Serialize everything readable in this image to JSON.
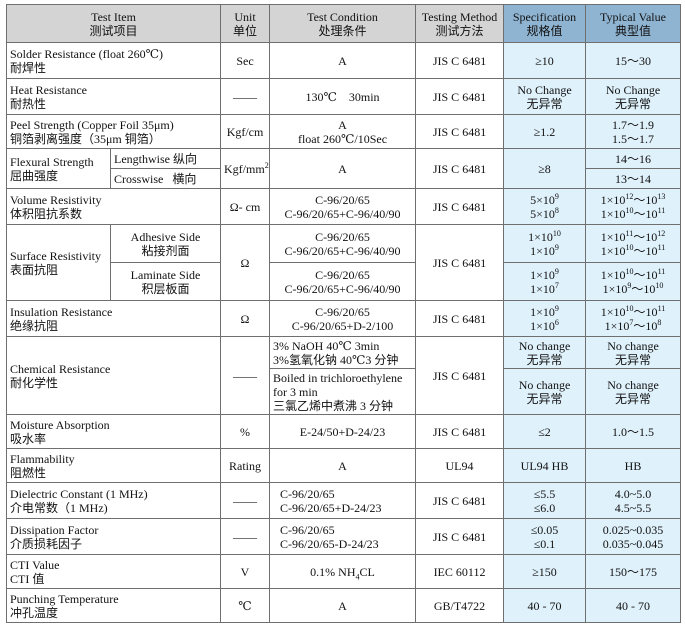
{
  "headers": {
    "item_en": "Test Item",
    "item_cn": "测试项目",
    "unit_en": "Unit",
    "unit_cn": "单位",
    "cond_en": "Test Condition",
    "cond_cn": "处理条件",
    "method_en": "Testing Method",
    "method_cn": "测试方法",
    "spec_en": "Specification",
    "spec_cn": "规格值",
    "typ_en": "Typical Value",
    "typ_cn": "典型值"
  },
  "rows": {
    "solder": {
      "en": "Solder Resistance (float 260℃)",
      "cn": "耐焊性",
      "unit": "Sec",
      "cond": "A",
      "method": "JIS C 6481",
      "spec": "≥10",
      "typ": "15～30"
    },
    "heat": {
      "en": "Heat Resistance",
      "cn": "耐热性",
      "unit": "——",
      "cond": "130℃    30min",
      "method": "JIS C 6481",
      "spec1": "No Change",
      "spec2": "无异常",
      "typ1": "No Change",
      "typ2": "无异常"
    },
    "peel": {
      "en": "Peel Strength (Copper Foil 35μm)",
      "cn": "铜箔剥离强度（35μm 铜箔）",
      "unit": "Kgf/cm",
      "cond1": "A",
      "cond2": "float 260℃/10Sec",
      "method": "JIS C 6481",
      "spec": "≥1.2",
      "typ1": "1.7～1.9",
      "typ2": "1.5～1.7"
    },
    "flex": {
      "en": "Flexural Strength",
      "cn": "屈曲强度",
      "sub1": "Lengthwise 纵向",
      "sub2": "Crosswise   横向",
      "unit": "Kgf/mm",
      "unit_sup": "2",
      "cond": "A",
      "method": "JIS C 6481",
      "spec": "≥8",
      "typ1": "14～16",
      "typ2": "13～14"
    },
    "volume": {
      "en": "Volume Resistivity",
      "cn": "体积阻抗系数",
      "unit": "Ω- cm",
      "cond1": "C-96/20/65",
      "cond2": "C-96/20/65+C-96/40/90",
      "method": "JIS C 6481",
      "spec1_base": "5×10",
      "spec1_exp": "9",
      "spec2_base": "5×10",
      "spec2_exp": "8",
      "typ1_a": "1×10",
      "typ1_ae": "12",
      "typ1_sep": "～10",
      "typ1_be": "13",
      "typ2_a": "1×10",
      "typ2_ae": "10",
      "typ2_sep": "～10",
      "typ2_be": "11"
    },
    "surface": {
      "en": "Surface Resistivity",
      "cn": "表面抗阻",
      "unit": "Ω",
      "adh_en": "Adhesive Side",
      "adh_cn": "粘接剂面",
      "lam_en": "Laminate Side",
      "lam_cn": "积层板面",
      "cond1": "C-96/20/65",
      "cond2": "C-96/20/65+C-96/40/90",
      "cond3": "C-96/20/65",
      "cond4": "C-96/20/65+C-96/40/90",
      "method": "JIS C 6481",
      "spec1_base": "1×10",
      "spec1_exp": "10",
      "spec2_base": "1×10",
      "spec2_exp": "9",
      "spec3_base": "1×10",
      "spec3_exp": "9",
      "spec4_base": "1×10",
      "spec4_exp": "7",
      "typ1_a": "1×10",
      "typ1_ae": "11",
      "typ1_sep": "～10",
      "typ1_be": "12",
      "typ2_a": "1×10",
      "typ2_ae": "10",
      "typ2_sep": "～10",
      "typ2_be": "11",
      "typ3_a": "1×10",
      "typ3_ae": "10",
      "typ3_sep": "～10",
      "typ3_be": "11",
      "typ4_a": "1×10",
      "typ4_ae": "9",
      "typ4_sep": "～10",
      "typ4_be": "10"
    },
    "insul": {
      "en": "Insulation Resistance",
      "cn": "绝缘抗阻",
      "unit": "Ω",
      "cond1": "C-96/20/65",
      "cond2": "C-96/20/65+D-2/100",
      "method": "JIS C 6481",
      "spec1_base": "1×10",
      "spec1_exp": "9",
      "spec2_base": "1×10",
      "spec2_exp": "6",
      "typ1_a": "1×10",
      "typ1_ae": "10",
      "typ1_sep": "～10",
      "typ1_be": "11",
      "typ2_a": "1×10",
      "typ2_ae": "7",
      "typ2_sep": "～10",
      "typ2_be": "8"
    },
    "chem": {
      "en": "Chemical Resistance",
      "cn": "耐化学性",
      "unit": "——",
      "cond1": "3% NaOH 40℃  3min",
      "cond2": "3%氢氧化钠 40℃3 分钟",
      "cond3": "Boiled in trichloroethylene",
      "cond4": "for 3 min",
      "cond5": "三氯乙烯中煮沸 3 分钟",
      "method": "JIS C 6481",
      "spec1": "No change",
      "spec2": "无异常",
      "spec3": "No change",
      "spec4": "无异常",
      "typ1": "No change",
      "typ2": "无异常",
      "typ3": "No change",
      "typ4": "无异常"
    },
    "moist": {
      "en": "Moisture Absorption",
      "cn": "吸水率",
      "unit": "%",
      "cond": "E-24/50+D-24/23",
      "method": "JIS C 6481",
      "spec": "≤2",
      "typ": "1.0～1.5"
    },
    "flam": {
      "en": "Flammability",
      "cn": "阻燃性",
      "unit": "Rating",
      "cond": "A",
      "method": "UL94",
      "spec": "UL94 HB",
      "typ": "HB"
    },
    "dielec": {
      "en": "Dielectric Constant (1 MHz)",
      "cn": "介电常数（1 MHz)",
      "unit": "——",
      "cond1": "C-96/20/65",
      "cond2": "C-96/20/65+D-24/23",
      "method": "JIS C 6481",
      "spec1": "≤5.5",
      "spec2": "≤6.0",
      "typ1": "4.0~5.0",
      "typ2": "4.5~5.5"
    },
    "dissip": {
      "en": "Dissipation Factor",
      "cn": "介质损耗因子",
      "unit": "——",
      "cond1": "C-96/20/65",
      "cond2": "C-96/20/65-D-24/23",
      "method": "JIS C 6481",
      "spec1": "≤0.05",
      "spec2": "≤0.1",
      "typ1": "0.025~0.035",
      "typ2": "0.035~0.045"
    },
    "cti": {
      "en": "CTI Value",
      "cn": "CTI 值",
      "unit": "V",
      "cond_pre": "0.1% NH",
      "cond_sub": "4",
      "cond_post": "CL",
      "method": "IEC 60112",
      "spec": "≥150",
      "typ": "150～175"
    },
    "punch": {
      "en": "Punching Temperature",
      "cn": "冲孔温度",
      "unit": "℃",
      "cond": "A",
      "method": "GB/T4722",
      "spec": "40 - 70",
      "typ": "40 - 70"
    }
  }
}
